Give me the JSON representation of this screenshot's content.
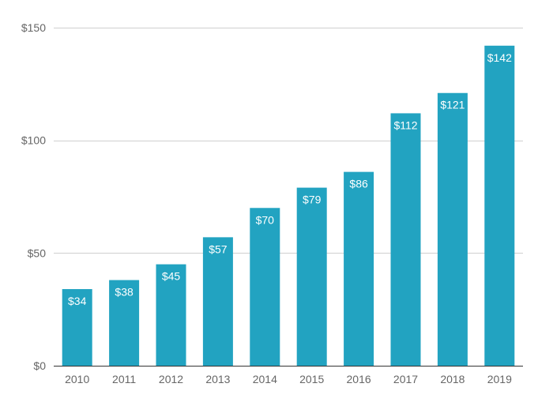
{
  "chart_data": {
    "type": "bar",
    "categories": [
      "2010",
      "2011",
      "2012",
      "2013",
      "2014",
      "2015",
      "2016",
      "2017",
      "2018",
      "2019"
    ],
    "values": [
      34,
      38,
      45,
      57,
      70,
      79,
      86,
      112,
      121,
      142
    ],
    "data_labels": [
      "$34",
      "$38",
      "$45",
      "$57",
      "$70",
      "$79",
      "$86",
      "$112",
      "$121",
      "$142"
    ],
    "title": "",
    "xlabel": "",
    "ylabel": "",
    "ylim": [
      0,
      150
    ],
    "y_ticks": [
      0,
      50,
      100,
      150
    ],
    "y_tick_labels": [
      "$0",
      "$50",
      "$100",
      "$150"
    ],
    "grid": true,
    "legend": "none",
    "bar_color": "#22a3c1"
  }
}
